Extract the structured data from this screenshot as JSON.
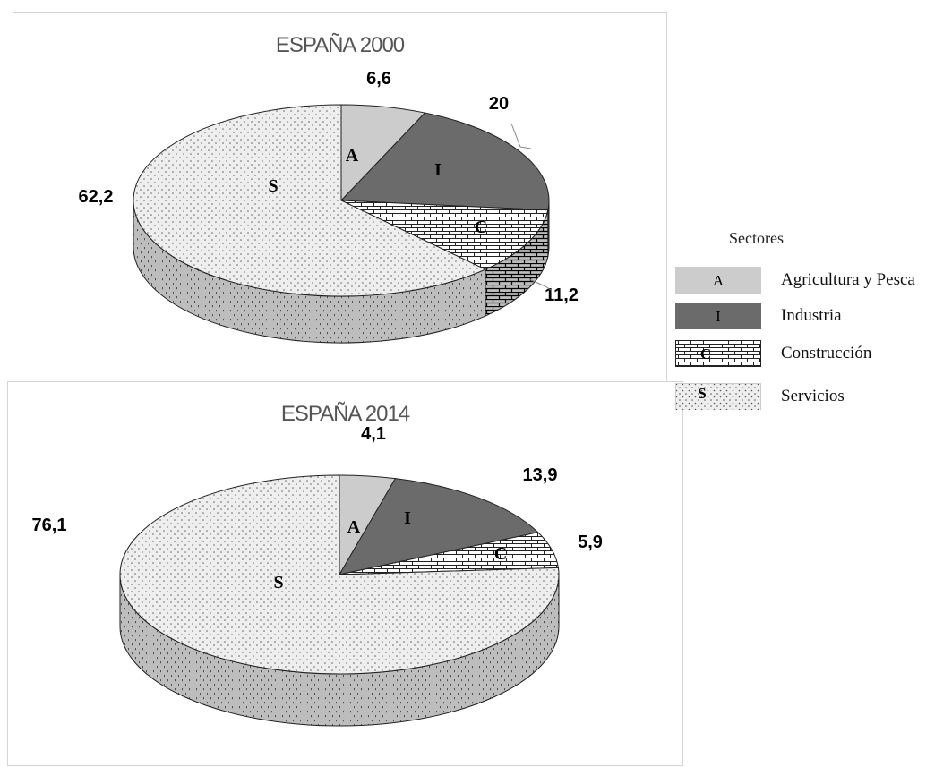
{
  "legend": {
    "title": "Sectores",
    "items": [
      {
        "key": "A",
        "label": "Agricultura y Pesca",
        "color": "#cccccc",
        "pattern": "solid"
      },
      {
        "key": "I",
        "label": "Industria",
        "color": "#6b6b6b",
        "pattern": "solid"
      },
      {
        "key": "C",
        "label": "Construcción",
        "color": "#ffffff",
        "pattern": "brick"
      },
      {
        "key": "S",
        "label": "Servicios",
        "color": "#e6e6e6",
        "pattern": "dots"
      }
    ]
  },
  "chart_data": [
    {
      "type": "pie",
      "style": "3d",
      "title": "ESPAÑA 2000",
      "slices": [
        {
          "key": "A",
          "label": "A",
          "value": 6.6,
          "value_label": "6,6"
        },
        {
          "key": "I",
          "label": "I",
          "value": 20,
          "value_label": "20"
        },
        {
          "key": "C",
          "label": "C",
          "value": 11.2,
          "value_label": "11,2"
        },
        {
          "key": "S",
          "label": "S",
          "value": 62.2,
          "value_label": "62,2"
        }
      ]
    },
    {
      "type": "pie",
      "style": "3d",
      "title": "ESPAÑA 2014",
      "slices": [
        {
          "key": "A",
          "label": "A",
          "value": 4.1,
          "value_label": "4,1"
        },
        {
          "key": "I",
          "label": "I",
          "value": 13.9,
          "value_label": "13,9"
        },
        {
          "key": "C",
          "label": "C",
          "value": 5.9,
          "value_label": "5,9"
        },
        {
          "key": "S",
          "label": "S",
          "value": 76.1,
          "value_label": "76,1"
        }
      ]
    }
  ]
}
